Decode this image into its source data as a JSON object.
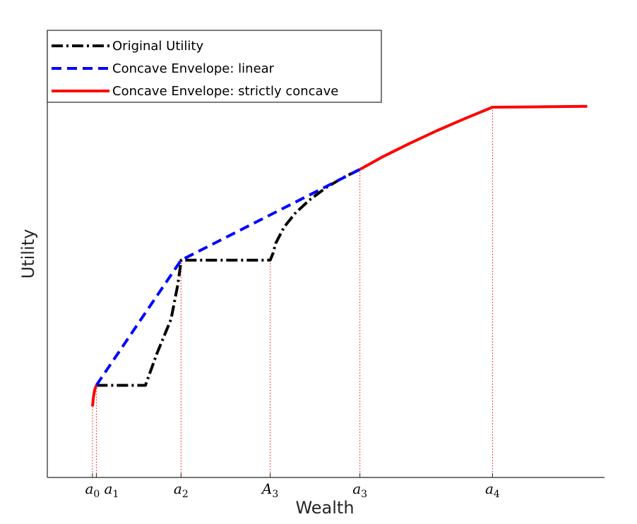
{
  "chart_data": {
    "type": "line",
    "title": "",
    "xlabel": "Wealth",
    "ylabel": "Utility",
    "xlim": [
      0,
      100
    ],
    "ylim": [
      0,
      100
    ],
    "grid": false,
    "legend_placement": "top-left",
    "ticks": [
      {
        "id": "a0",
        "base": "a",
        "sub": "0",
        "x": 8.1
      },
      {
        "id": "a1",
        "base": "a",
        "sub": "1",
        "x": 8.8
      },
      {
        "id": "a2",
        "base": "a",
        "sub": "2",
        "x": 24.0
      },
      {
        "id": "A3",
        "base": "A",
        "sub": "3",
        "x": 40.0
      },
      {
        "id": "a3",
        "base": "a",
        "sub": "3",
        "x": 56.1
      },
      {
        "id": "a4",
        "base": "a",
        "sub": "4",
        "x": 79.9
      }
    ],
    "series": [
      {
        "name": "Original Utility",
        "color": "#000000",
        "style": "dash-dot",
        "points": [
          [
            8.8,
            20.6
          ],
          [
            17.6,
            20.6
          ],
          [
            19.7,
            27.8
          ],
          [
            22.2,
            35.4
          ],
          [
            23.4,
            43.0
          ],
          [
            24.0,
            48.3
          ],
          [
            24.0,
            48.6
          ],
          [
            40.0,
            48.6
          ],
          [
            40.5,
            50.1
          ],
          [
            41.0,
            52.4
          ],
          [
            42.5,
            56.0
          ],
          [
            44.5,
            59.1
          ],
          [
            47,
            62.0
          ],
          [
            50,
            64.8
          ],
          [
            53,
            67.0
          ],
          [
            56.1,
            68.9
          ]
        ]
      },
      {
        "name": "Concave Envelope: linear",
        "color": "#0000FF",
        "style": "dashed",
        "points": [
          [
            8.8,
            20.6
          ],
          [
            24.0,
            48.6
          ],
          [
            56.1,
            68.9
          ]
        ]
      },
      {
        "name": "Concave Envelope: strictly concave",
        "color": "#FF0000",
        "style": "solid",
        "segments": [
          [
            [
              8.1,
              15.9
            ],
            [
              8.3,
              18.2
            ],
            [
              8.5,
              19.6
            ],
            [
              8.8,
              20.6
            ]
          ],
          [
            [
              56.1,
              68.9
            ],
            [
              60,
              71.6
            ],
            [
              65,
              74.7
            ],
            [
              70,
              77.6
            ],
            [
              75,
              80.3
            ],
            [
              79.9,
              82.8
            ],
            [
              89,
              82.9
            ],
            [
              96.9,
              83.0
            ]
          ]
        ]
      }
    ]
  }
}
